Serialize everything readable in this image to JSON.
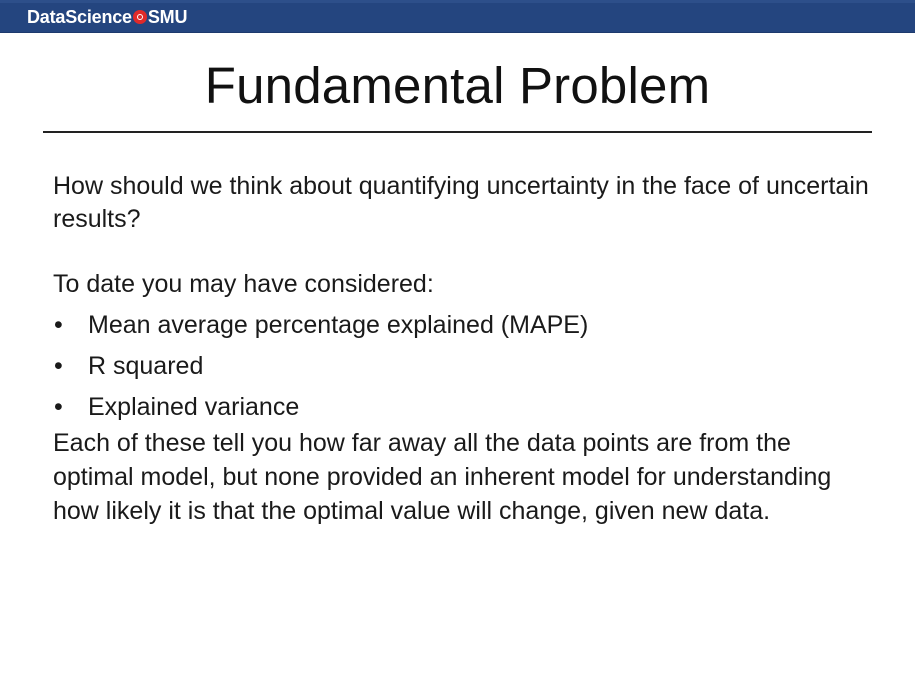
{
  "header": {
    "brand_left": "DataScience",
    "brand_right": "SMU",
    "brand_accent": "#e02a2a",
    "bar_color": "#24457f"
  },
  "slide": {
    "title": "Fundamental Problem",
    "intro": "How should we think about quantifying uncertainty in the face of uncertain results?",
    "lead": "To date you may have considered:",
    "bullets": [
      "Mean average percentage explained (MAPE)",
      "R squared",
      "Explained variance"
    ],
    "closing": "Each of these tell you how far away all the data points are from the optimal model, but none provided an inherent model for understanding how likely it is that the optimal value will change, given new data."
  }
}
